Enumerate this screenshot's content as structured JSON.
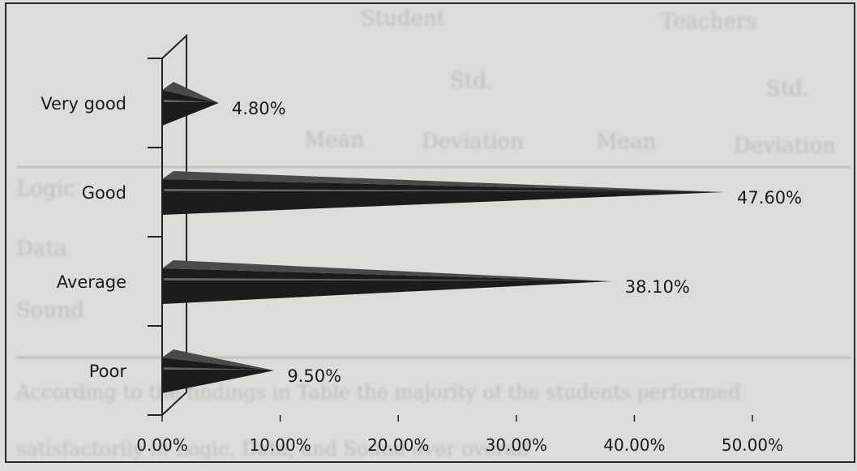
{
  "chart_data": {
    "type": "bar",
    "orientation": "horizontal",
    "style": "3d-cone",
    "categories": [
      "Very good",
      "Good",
      "Average",
      "Poor"
    ],
    "values": [
      4.8,
      47.6,
      38.1,
      9.5
    ],
    "value_labels": [
      "4.80%",
      "47.60%",
      "38.10%",
      "9.50%"
    ],
    "xlim": [
      0,
      50
    ],
    "xticks": [
      0,
      10,
      20,
      30,
      40,
      50
    ],
    "xtick_labels": [
      "0.00%",
      "10.00%",
      "20.00%",
      "30.00%",
      "40.00%",
      "50.00%"
    ],
    "title": "",
    "xlabel": "",
    "ylabel": "",
    "grid": false,
    "legend": "none",
    "bar_color": "#1c1c1c"
  }
}
